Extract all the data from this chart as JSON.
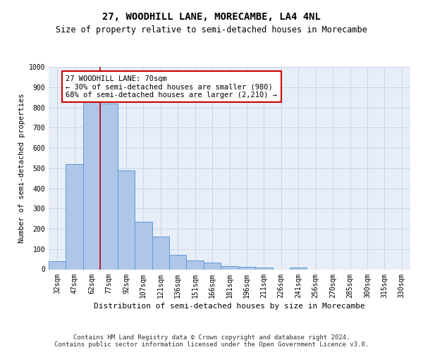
{
  "title1": "27, WOODHILL LANE, MORECAMBE, LA4 4NL",
  "title2": "Size of property relative to semi-detached houses in Morecambe",
  "xlabel": "Distribution of semi-detached houses by size in Morecambe",
  "ylabel": "Number of semi-detached properties",
  "categories": [
    "32sqm",
    "47sqm",
    "62sqm",
    "77sqm",
    "92sqm",
    "107sqm",
    "121sqm",
    "136sqm",
    "151sqm",
    "166sqm",
    "181sqm",
    "196sqm",
    "211sqm",
    "226sqm",
    "241sqm",
    "256sqm",
    "270sqm",
    "285sqm",
    "300sqm",
    "315sqm",
    "330sqm"
  ],
  "values": [
    40,
    520,
    830,
    820,
    490,
    235,
    162,
    73,
    43,
    33,
    16,
    13,
    10,
    0,
    10,
    0,
    0,
    0,
    0,
    0,
    0
  ],
  "bar_color": "#aec6e8",
  "bar_edge_color": "#5b9bd5",
  "vline_x": 2.5,
  "vline_color": "#cc0000",
  "annotation_text": "27 WOODHILL LANE: 70sqm\n← 30% of semi-detached houses are smaller (980)\n68% of semi-detached houses are larger (2,210) →",
  "annotation_box_color": "#ffffff",
  "annotation_box_edge": "#cc0000",
  "ylim": [
    0,
    1000
  ],
  "yticks": [
    0,
    100,
    200,
    300,
    400,
    500,
    600,
    700,
    800,
    900,
    1000
  ],
  "grid_color": "#c8d4e8",
  "background_color": "#e8eef8",
  "footnote": "Contains HM Land Registry data © Crown copyright and database right 2024.\nContains public sector information licensed under the Open Government Licence v3.0.",
  "title1_fontsize": 10,
  "title2_fontsize": 8.5,
  "xlabel_fontsize": 8,
  "ylabel_fontsize": 7.5,
  "tick_fontsize": 7,
  "annotation_fontsize": 7.5,
  "footnote_fontsize": 6.5
}
